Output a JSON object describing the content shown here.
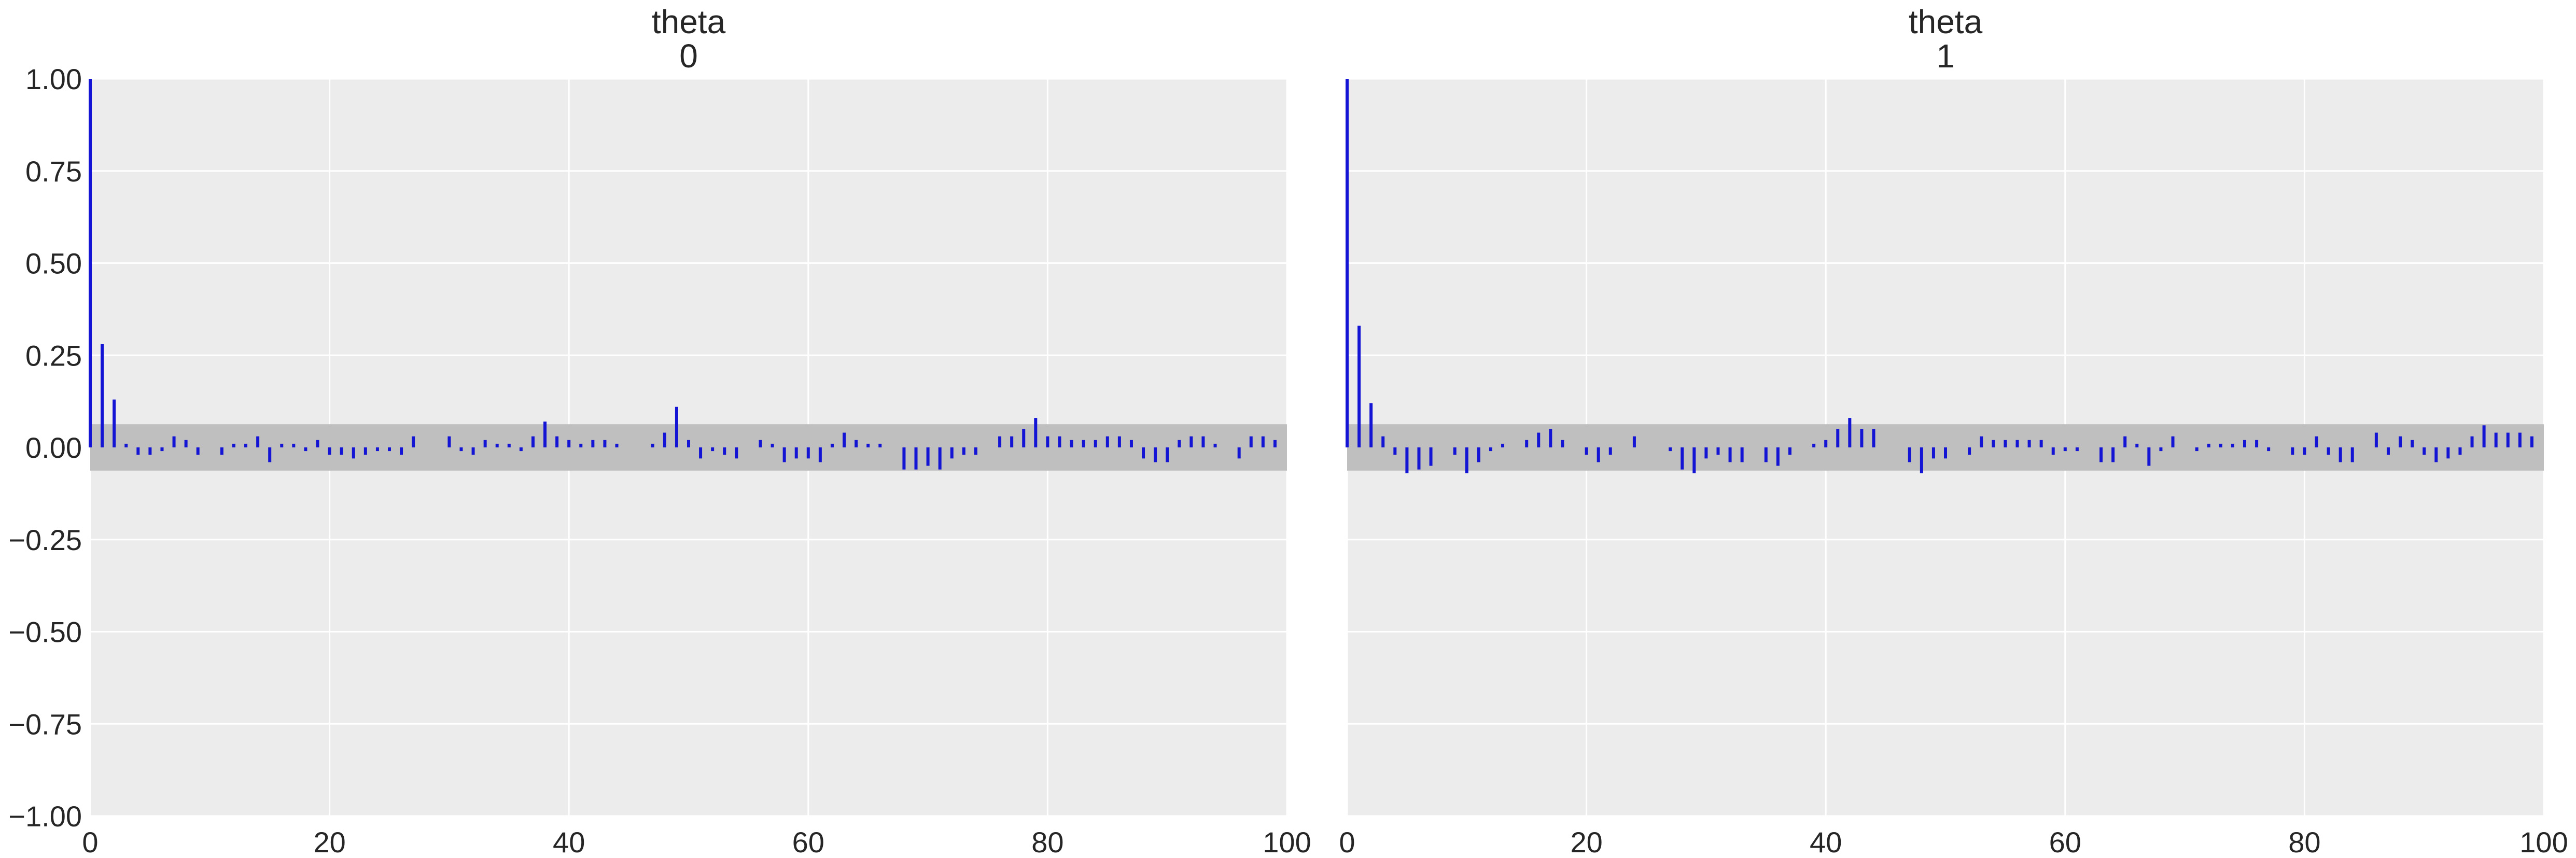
{
  "chart_data": [
    {
      "type": "bar",
      "title": [
        "theta",
        "0"
      ],
      "xlim": [
        0,
        100
      ],
      "ylim": [
        -1.0,
        1.0
      ],
      "xticks": [
        "0",
        "20",
        "40",
        "60",
        "80",
        "100"
      ],
      "yticks": [
        "1.00",
        "0.75",
        "0.50",
        "0.25",
        "0.00",
        "−0.25",
        "−0.50",
        "−0.75",
        "−1.00"
      ],
      "band": [
        -0.063,
        0.063
      ],
      "bar_color": "#1414d4",
      "band_color": "#bfbfbf",
      "background": "#ececec",
      "grid": true,
      "x": [
        0,
        1,
        2,
        3,
        4,
        5,
        6,
        7,
        8,
        9,
        10,
        11,
        12,
        13,
        14,
        15,
        16,
        17,
        18,
        19,
        20,
        21,
        22,
        23,
        24,
        25,
        26,
        27,
        28,
        29,
        30,
        31,
        32,
        33,
        34,
        35,
        36,
        37,
        38,
        39,
        40,
        41,
        42,
        43,
        44,
        45,
        46,
        47,
        48,
        49,
        50,
        51,
        52,
        53,
        54,
        55,
        56,
        57,
        58,
        59,
        60,
        61,
        62,
        63,
        64,
        65,
        66,
        67,
        68,
        69,
        70,
        71,
        72,
        73,
        74,
        75,
        76,
        77,
        78,
        79,
        80,
        81,
        82,
        83,
        84,
        85,
        86,
        87,
        88,
        89,
        90,
        91,
        92,
        93,
        94,
        95,
        96,
        97,
        98,
        99
      ],
      "values": [
        1.0,
        0.28,
        0.13,
        0.01,
        -0.02,
        -0.02,
        -0.01,
        0.03,
        0.02,
        -0.02,
        0.0,
        -0.02,
        0.01,
        0.01,
        0.03,
        -0.04,
        0.01,
        0.01,
        -0.01,
        0.02,
        -0.02,
        -0.02,
        -0.03,
        -0.02,
        -0.01,
        -0.01,
        -0.02,
        0.03,
        0.0,
        0.0,
        0.03,
        -0.01,
        -0.02,
        0.02,
        0.01,
        0.01,
        -0.01,
        0.03,
        0.07,
        0.03,
        0.02,
        0.01,
        0.02,
        0.02,
        0.01,
        0.0,
        0.0,
        0.01,
        0.04,
        0.11,
        0.02,
        -0.03,
        -0.01,
        -0.02,
        -0.03,
        0.0,
        0.02,
        0.01,
        -0.04,
        -0.03,
        -0.03,
        -0.04,
        0.01,
        0.04,
        0.02,
        0.01,
        0.01,
        0.0,
        -0.06,
        -0.06,
        -0.05,
        -0.06,
        -0.03,
        -0.02,
        -0.02,
        0.0,
        0.03,
        0.03,
        0.05,
        0.08,
        0.03,
        0.03,
        0.02,
        0.02,
        0.02,
        0.03,
        0.03,
        0.02,
        -0.03,
        -0.04,
        -0.04,
        0.02,
        0.03,
        0.03,
        0.01,
        0.0,
        -0.03,
        0.03,
        0.03,
        0.02
      ]
    },
    {
      "type": "bar",
      "title": [
        "theta",
        "1"
      ],
      "xlim": [
        0,
        100
      ],
      "ylim": [
        -1.0,
        1.0
      ],
      "xticks": [
        "0",
        "20",
        "40",
        "60",
        "80",
        "100"
      ],
      "yticks": [],
      "band": [
        -0.063,
        0.063
      ],
      "bar_color": "#1414d4",
      "band_color": "#bfbfbf",
      "background": "#ececec",
      "grid": true,
      "x": [
        0,
        1,
        2,
        3,
        4,
        5,
        6,
        7,
        8,
        9,
        10,
        11,
        12,
        13,
        14,
        15,
        16,
        17,
        18,
        19,
        20,
        21,
        22,
        23,
        24,
        25,
        26,
        27,
        28,
        29,
        30,
        31,
        32,
        33,
        34,
        35,
        36,
        37,
        38,
        39,
        40,
        41,
        42,
        43,
        44,
        45,
        46,
        47,
        48,
        49,
        50,
        51,
        52,
        53,
        54,
        55,
        56,
        57,
        58,
        59,
        60,
        61,
        62,
        63,
        64,
        65,
        66,
        67,
        68,
        69,
        70,
        71,
        72,
        73,
        74,
        75,
        76,
        77,
        78,
        79,
        80,
        81,
        82,
        83,
        84,
        85,
        86,
        87,
        88,
        89,
        90,
        91,
        92,
        93,
        94,
        95,
        96,
        97,
        98,
        99
      ],
      "values": [
        1.0,
        0.33,
        0.12,
        0.03,
        -0.02,
        -0.07,
        -0.06,
        -0.05,
        0.0,
        -0.02,
        -0.07,
        -0.04,
        -0.01,
        0.01,
        0.0,
        0.02,
        0.04,
        0.05,
        0.02,
        0.0,
        -0.02,
        -0.04,
        -0.02,
        0.0,
        0.03,
        0.0,
        0.0,
        -0.01,
        -0.06,
        -0.07,
        -0.03,
        -0.02,
        -0.04,
        -0.04,
        0.0,
        -0.04,
        -0.05,
        -0.02,
        0.0,
        0.01,
        0.02,
        0.05,
        0.08,
        0.05,
        0.05,
        0.0,
        0.0,
        -0.04,
        -0.07,
        -0.03,
        -0.03,
        0.0,
        -0.02,
        0.03,
        0.02,
        0.02,
        0.02,
        0.02,
        0.02,
        -0.02,
        -0.01,
        -0.01,
        0.0,
        -0.04,
        -0.04,
        0.03,
        0.01,
        -0.05,
        -0.01,
        0.03,
        0.0,
        -0.01,
        0.01,
        0.01,
        0.01,
        0.02,
        0.02,
        -0.01,
        0.0,
        -0.02,
        -0.02,
        0.03,
        -0.02,
        -0.04,
        -0.04,
        0.0,
        0.04,
        -0.02,
        0.03,
        0.02,
        -0.02,
        -0.04,
        -0.03,
        -0.02,
        0.03,
        0.06,
        0.04,
        0.04,
        0.04,
        0.03
      ]
    }
  ]
}
